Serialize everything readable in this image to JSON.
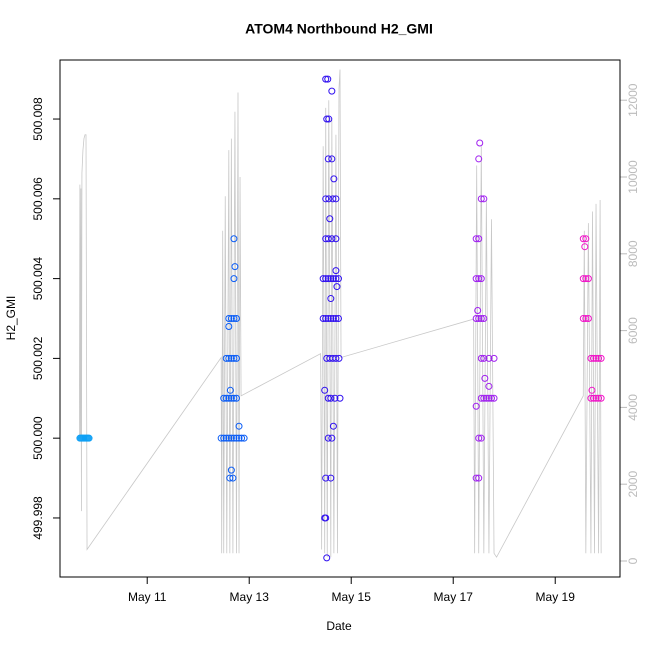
{
  "chart_data": [
    {
      "type": "scatter",
      "title": "ATOM4 Northbound H2_GMI",
      "xlabel": "Date",
      "ylabel": "H2_GMI",
      "xlim": [
        9.29,
        20.27
      ],
      "ylim": [
        499.99652,
        500.00948
      ],
      "xticks": [
        {
          "value": 11,
          "label": "May 11"
        },
        {
          "value": 13,
          "label": "May 13"
        },
        {
          "value": 15,
          "label": "May 15"
        },
        {
          "value": 17,
          "label": "May 17"
        },
        {
          "value": 19,
          "label": "May 19"
        }
      ],
      "yticks": [
        499.998,
        {
          "value": 500,
          "label": "500.000"
        },
        500.002,
        500.004,
        500.006,
        500.008
      ],
      "series": [
        {
          "color": "#0fa0f5",
          "x": [
            9.68,
            9.7,
            9.72,
            9.74,
            9.76,
            9.78,
            9.8,
            9.82,
            9.84,
            9.86
          ],
          "values": [
            500,
            500,
            500,
            500,
            500,
            500,
            500,
            500,
            500,
            500
          ]
        },
        {
          "color": "#0a5cf5",
          "x": [
            12.45,
            12.5,
            12.55,
            12.6,
            12.65,
            12.7,
            12.75,
            12.8,
            12.85,
            12.9,
            12.5,
            12.55,
            12.6,
            12.65,
            12.7,
            12.75,
            12.55,
            12.6,
            12.65,
            12.7,
            12.75,
            12.6,
            12.65,
            12.7,
            12.75,
            12.62,
            12.68,
            12.7,
            12.7,
            12.72,
            12.65,
            12.6,
            12.8,
            12.63
          ],
          "values": [
            500,
            500,
            500,
            500,
            500,
            500,
            500,
            500,
            500,
            500,
            500.001,
            500.001,
            500.001,
            500.001,
            500.001,
            500.001,
            500.002,
            500.002,
            500.002,
            500.002,
            500.002,
            500.003,
            500.003,
            500.003,
            500.003,
            499.999,
            499.999,
            500.005,
            500.004,
            500.0043,
            499.9992,
            500.0028,
            500.0003,
            500.0012
          ]
        },
        {
          "color": "#3010f0",
          "x": [
            14.45,
            14.5,
            14.55,
            14.6,
            14.65,
            14.7,
            14.75,
            14.45,
            14.5,
            14.55,
            14.6,
            14.65,
            14.7,
            14.75,
            14.52,
            14.58,
            14.64,
            14.7,
            14.76,
            14.55,
            14.6,
            14.68,
            14.78,
            14.5,
            14.55,
            14.62,
            14.7,
            14.5,
            14.56,
            14.64,
            14.7,
            14.55,
            14.62,
            14.52,
            14.56,
            14.5,
            14.54,
            14.5,
            14.6,
            14.48,
            14.5,
            14.52,
            14.55,
            14.62,
            14.65,
            14.6,
            14.72,
            14.58,
            14.66,
            14.7,
            14.48,
            14.62
          ],
          "values": [
            500.004,
            500.004,
            500.004,
            500.004,
            500.004,
            500.004,
            500.004,
            500.003,
            500.003,
            500.003,
            500.003,
            500.003,
            500.003,
            500.003,
            500.002,
            500.002,
            500.002,
            500.002,
            500.002,
            500.001,
            500.001,
            500.001,
            500.001,
            500.005,
            500.005,
            500.005,
            500.005,
            500.006,
            500.006,
            500.006,
            500.006,
            500.007,
            500.007,
            500.008,
            500.008,
            500.009,
            500.009,
            499.999,
            499.999,
            499.998,
            499.998,
            499.997,
            500,
            500,
            500.0003,
            500.0035,
            500.0038,
            500.0055,
            500.0065,
            500.0042,
            500.0012,
            500.0087
          ]
        },
        {
          "color": "#a020f0",
          "x": [
            17.45,
            17.5,
            17.45,
            17.5,
            17.55,
            17.45,
            17.5,
            17.55,
            17.6,
            17.55,
            17.6,
            17.7,
            17.8,
            17.55,
            17.6,
            17.65,
            17.7,
            17.75,
            17.8,
            17.5,
            17.55,
            17.45,
            17.5,
            17.55,
            17.6,
            17.5,
            17.52,
            17.48,
            17.62,
            17.45,
            17.7
          ],
          "values": [
            500.005,
            500.005,
            500.004,
            500.004,
            500.004,
            500.003,
            500.003,
            500.003,
            500.003,
            500.002,
            500.002,
            500.002,
            500.002,
            500.001,
            500.001,
            500.001,
            500.001,
            500.001,
            500.001,
            500,
            500,
            499.999,
            499.999,
            500.006,
            500.006,
            500.007,
            500.0074,
            500.0032,
            500.0015,
            500.0008,
            500.0013
          ]
        },
        {
          "color": "#f014c8",
          "x": [
            19.55,
            19.6,
            19.55,
            19.6,
            19.65,
            19.55,
            19.6,
            19.65,
            19.7,
            19.75,
            19.8,
            19.85,
            19.9,
            19.7,
            19.75,
            19.8,
            19.85,
            19.9,
            19.58,
            19.72
          ],
          "values": [
            500.005,
            500.005,
            500.004,
            500.004,
            500.004,
            500.003,
            500.003,
            500.003,
            500.002,
            500.002,
            500.002,
            500.002,
            500.002,
            500.001,
            500.001,
            500.001,
            500.001,
            500.001,
            500.0048,
            500.0012
          ]
        }
      ]
    },
    {
      "type": "line",
      "xlim": [
        9.29,
        20.27
      ],
      "y2lim": [
        -417,
        13047
      ],
      "y2ticks": [
        0,
        2000,
        4000,
        6000,
        8000,
        10000,
        12000
      ],
      "series": [
        {
          "color": "#c8c8c8",
          "axis": "y2",
          "x": [
            9.67,
            9.68,
            9.69,
            9.7,
            9.71,
            9.72,
            9.74,
            9.76,
            9.78,
            9.8,
            9.82,
            12.45,
            12.46,
            12.48,
            12.5,
            12.53,
            12.56,
            12.6,
            12.62,
            12.65,
            12.68,
            12.72,
            12.75,
            12.78,
            12.8,
            12.82,
            12.84,
            14.4,
            14.42,
            14.45,
            14.48,
            14.5,
            14.53,
            14.56,
            14.6,
            14.62,
            14.66,
            14.7,
            14.73,
            14.76,
            14.78,
            14.8,
            17.4,
            17.42,
            17.46,
            17.5,
            17.55,
            17.6,
            17.65,
            17.7,
            17.75,
            17.8,
            17.85,
            19.55,
            19.57,
            19.6,
            19.65,
            19.7,
            19.73,
            19.77,
            19.8,
            19.85,
            19.88,
            19.9
          ],
          "values": [
            3200,
            9800,
            3200,
            9700,
            1300,
            10100,
            10700,
            11000,
            11100,
            11100,
            300,
            5300,
            200,
            8600,
            200,
            9500,
            200,
            10700,
            200,
            11000,
            200,
            11700,
            200,
            12200,
            200,
            10000,
            4300,
            5400,
            300,
            10800,
            200,
            11800,
            100,
            12000,
            100,
            11500,
            200,
            11100,
            200,
            12300,
            12800,
            5300,
            6300,
            200,
            10300,
            200,
            10800,
            200,
            9400,
            200,
            8900,
            200,
            100,
            4300,
            8600,
            200,
            8800,
            200,
            9100,
            200,
            9300,
            200,
            9400,
            200
          ]
        }
      ]
    }
  ]
}
